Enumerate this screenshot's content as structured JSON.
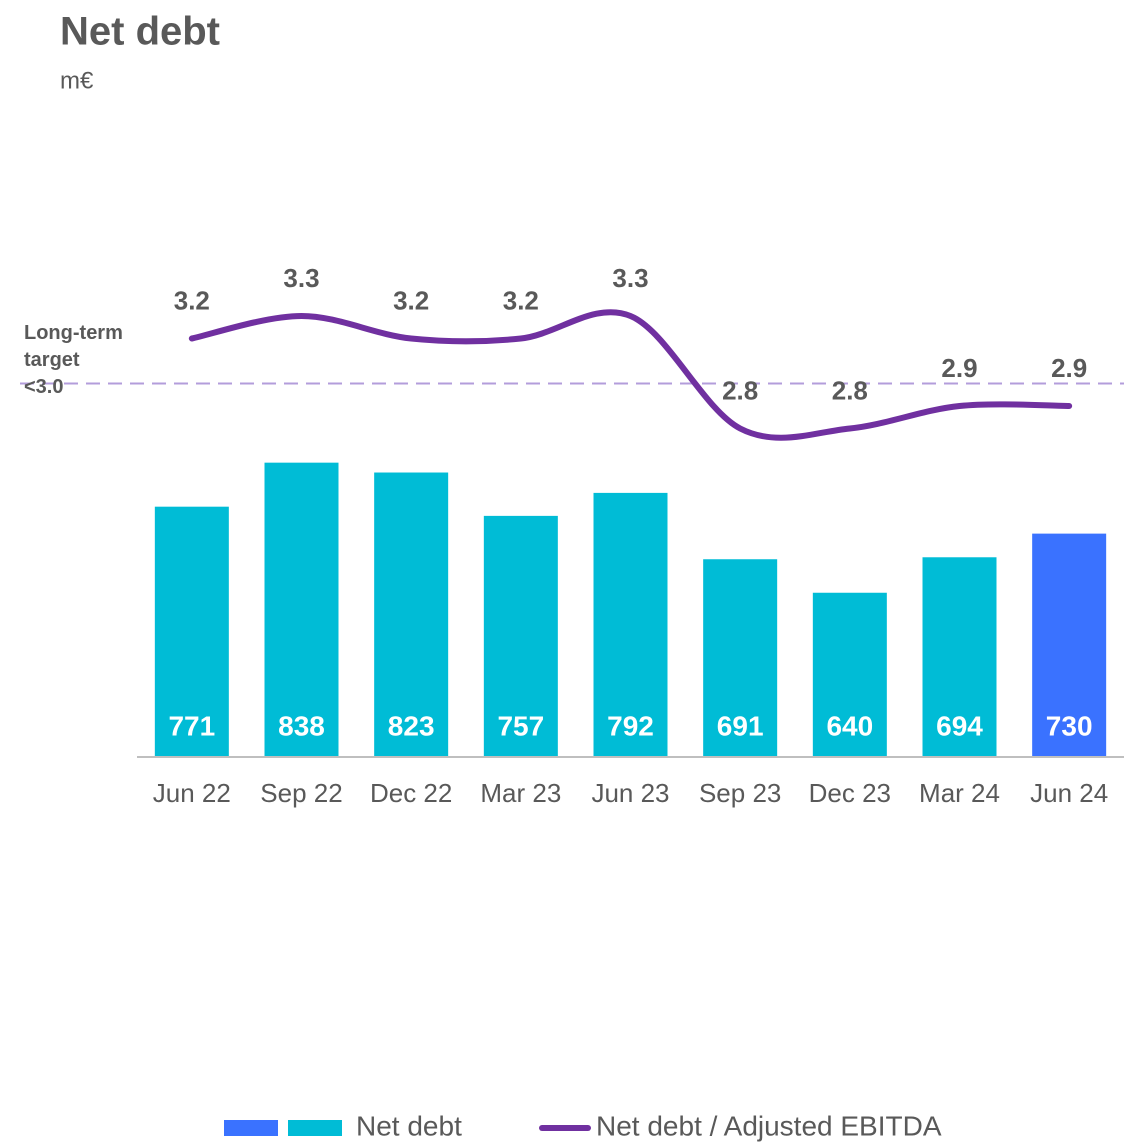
{
  "chart_data": {
    "type": "bar_line",
    "title": "Net debt",
    "subtitle": "m€",
    "categories": [
      "Jun  22",
      "Sep 22",
      "Dec 22",
      "Mar 23",
      "Jun 23",
      "Sep 23",
      "Dec 23",
      "Mar 24",
      "Jun 24"
    ],
    "ylim": [
      390,
      1390
    ],
    "y2lim": [
      1.34,
      4.26
    ],
    "series": [
      {
        "name": "Net debt",
        "type": "bar",
        "color": "#00bcd6",
        "colors": [
          "#00bcd6",
          "#00bcd6",
          "#00bcd6",
          "#00bcd6",
          "#00bcd6",
          "#00bcd6",
          "#00bcd6",
          "#00bcd6",
          "#3a72ff"
        ],
        "values": [
          771,
          838,
          823,
          757,
          792,
          691,
          640,
          694,
          730
        ]
      },
      {
        "name": "Net debt / Adjusted EBITDA",
        "type": "line",
        "axis": "y2",
        "color": "#7030a0",
        "values": [
          3.2,
          3.3,
          3.2,
          3.2,
          3.3,
          2.8,
          2.8,
          2.9,
          2.9
        ]
      }
    ],
    "target_line": {
      "value": 3.0,
      "label": [
        "Long-term",
        "target",
        "<3.0"
      ],
      "color": "#b39ddb"
    }
  }
}
